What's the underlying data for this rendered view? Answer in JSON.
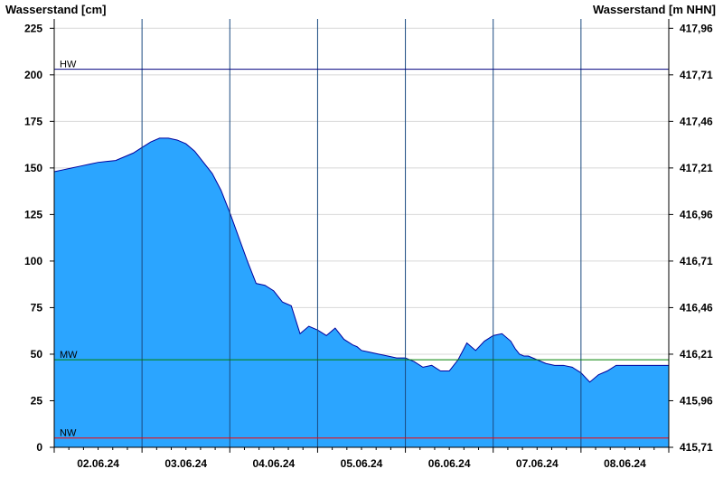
{
  "chart_data": {
    "type": "area",
    "title": "",
    "ylabel": "Wasserstand [cm]",
    "ylabel_right": "Wasserstand [m NHN]",
    "ylim": [
      0,
      230
    ],
    "yticks": [
      0,
      25,
      50,
      75,
      100,
      125,
      150,
      175,
      200,
      225
    ],
    "ylim_right": [
      415.71,
      418.01
    ],
    "yticks_right": [
      "415,71",
      "415,96",
      "416,21",
      "416,46",
      "416,71",
      "416,96",
      "417,21",
      "417,46",
      "417,71",
      "417,96"
    ],
    "xlim": [
      0,
      7
    ],
    "xtick_labels": [
      "02.06.24",
      "03.06.24",
      "04.06.24",
      "05.06.24",
      "06.06.24",
      "07.06.24",
      "08.06.24"
    ],
    "grid": true,
    "legend": "none",
    "colors": {
      "fill": "#2ba5ff",
      "line": "#00009c",
      "hw": "#000080",
      "mw": "#008000",
      "nw": "#ff0000",
      "grid": "#d8d8d8",
      "day_lines": "#1a4a80"
    },
    "reference_lines": [
      {
        "label": "HW",
        "value": 203
      },
      {
        "label": "MW",
        "value": 47
      },
      {
        "label": "NW",
        "value": 5
      }
    ],
    "series": [
      {
        "x": [
          0,
          0.1,
          0.2,
          0.3,
          0.4,
          0.5,
          0.6,
          0.7,
          0.8,
          0.9,
          1.0,
          1.1,
          1.2,
          1.3,
          1.4,
          1.5,
          1.6,
          1.7,
          1.8,
          1.9,
          2.0,
          2.1,
          2.2,
          2.3,
          2.4,
          2.5,
          2.6,
          2.7,
          2.8,
          2.9,
          3.0,
          3.1,
          3.2,
          3.3,
          3.4,
          3.45,
          3.5,
          3.6,
          3.7,
          3.8,
          3.9,
          4.0,
          4.1,
          4.2,
          4.3,
          4.4,
          4.5,
          4.6,
          4.7,
          4.8,
          4.9,
          5.0,
          5.1,
          5.2,
          5.25,
          5.3,
          5.35,
          5.4,
          5.5,
          5.6,
          5.7,
          5.8,
          5.9,
          6.0,
          6.1,
          6.2,
          6.3,
          6.4,
          6.5,
          6.6,
          6.7,
          6.8,
          6.9,
          7.0
        ],
        "y": [
          148,
          149,
          150,
          151,
          152,
          153,
          153.5,
          154,
          156,
          158,
          161,
          164,
          166,
          166,
          165,
          163,
          159,
          153,
          147,
          138,
          126,
          113,
          100,
          88,
          87,
          84,
          78,
          76,
          61,
          65,
          63,
          60,
          64,
          58,
          55,
          54,
          52,
          51,
          50,
          49,
          48,
          48,
          46,
          43,
          44,
          41,
          41,
          47,
          56,
          52,
          57,
          60,
          61,
          57,
          53,
          50,
          49,
          49,
          47,
          45,
          44,
          44,
          43,
          40,
          35,
          39,
          41,
          44,
          44,
          44,
          44,
          44,
          44,
          44
        ]
      }
    ]
  }
}
